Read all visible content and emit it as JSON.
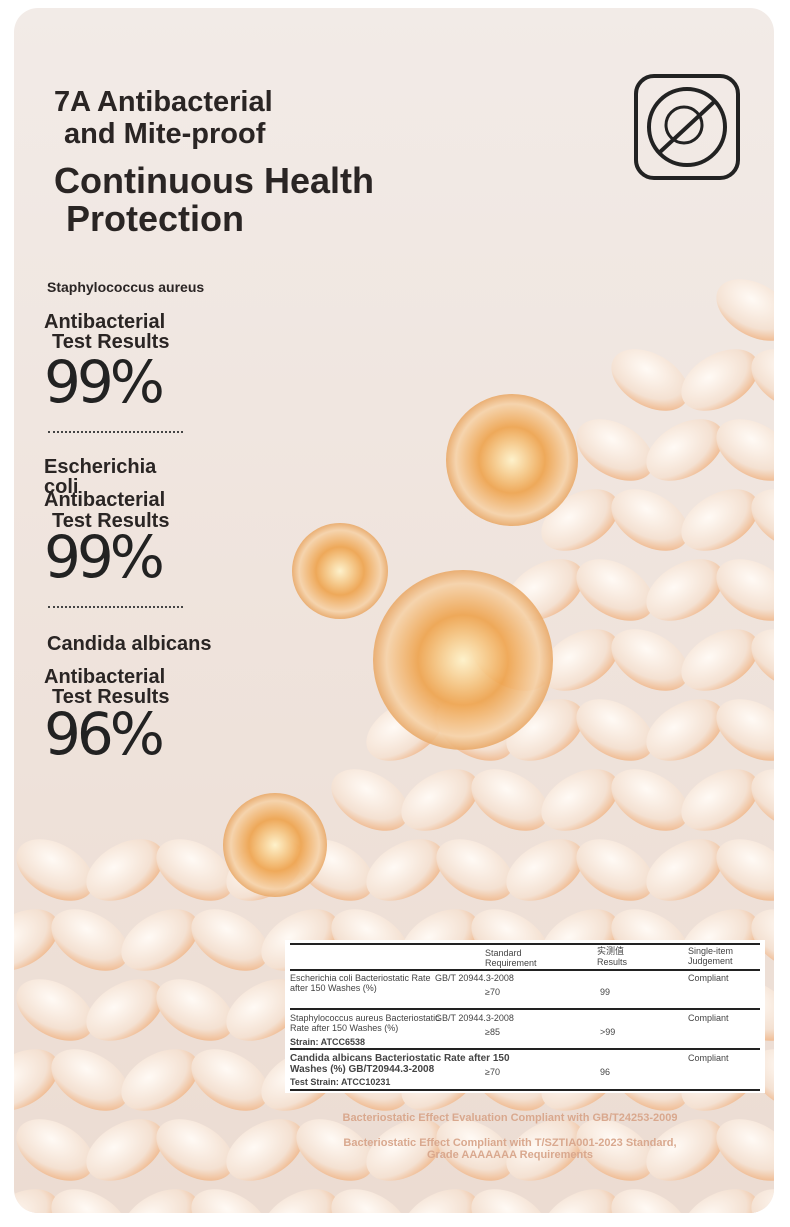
{
  "header": {
    "title_line1": "7A Antibacterial",
    "title_line2": "and Mite-proof",
    "headline_line1": "Continuous Health",
    "headline_line2": "Protection"
  },
  "results": [
    {
      "organism": "Staphylococcus aureus",
      "label_line1": "Antibacterial",
      "label_line2": "Test Results",
      "value": "99%"
    },
    {
      "organism": "Escherichia coli",
      "label_line1": "Antibacterial",
      "label_line2": "Test Results",
      "value": "99%"
    },
    {
      "organism": "Candida albicans",
      "label_line1": "Antibacterial",
      "label_line2": "Test Results",
      "value": "96%"
    }
  ],
  "table": {
    "header": [
      "Standard Requirement",
      "实测值 Results",
      "Single-item Judgement"
    ],
    "rows": [
      [
        "Escherichia coli Bacteriostatic Rate after 150 Washes (%)",
        "GB/T 20944.3-2008",
        "≥70",
        "99",
        "Compliant",
        ""
      ],
      [
        "Staphylococcus aureus Bacteriostatic Rate after 150 Washes (%)",
        "GB/T 20944.3-2008",
        "≥85",
        ">99",
        "Compliant",
        "Strain: ATCC6538"
      ],
      [
        "Candida albicans Bacteriostatic Rate after 150 Washes (%) GB/T20944.3-2008",
        "",
        "≥70",
        "96",
        "Compliant",
        "Test Strain: ATCC10231"
      ]
    ]
  },
  "footer": {
    "line1": "Bacteriostatic Effect Evaluation Compliant with GB/T24253-2009",
    "line2": "Bacteriostatic Effect Compliant with T/SZTIA001-2023 Standard, Grade AAAAAAA Requirements"
  }
}
